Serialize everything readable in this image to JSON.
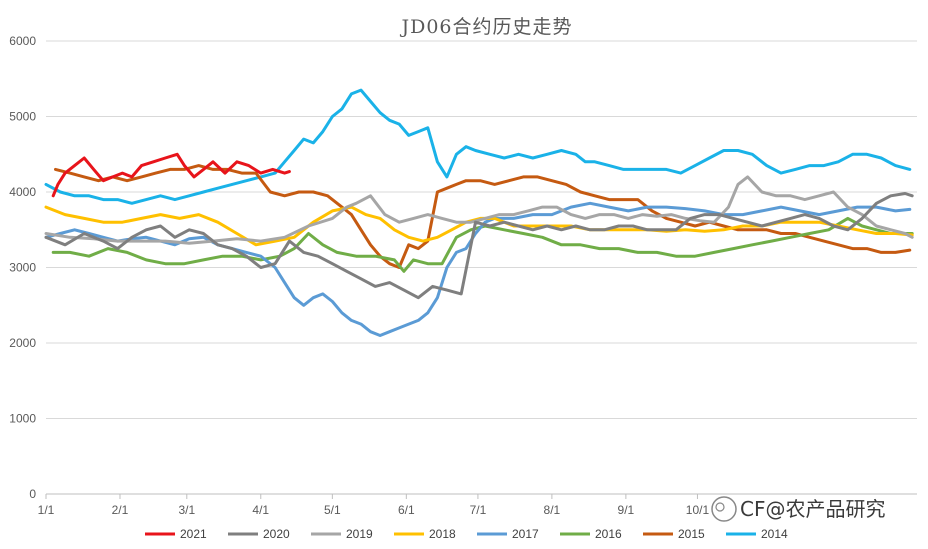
{
  "chart_data": {
    "type": "line",
    "title": "JD06合约历史走势",
    "xlabel": "",
    "ylabel": "",
    "ylim": [
      0,
      6000
    ],
    "yticks": [
      0,
      1000,
      2000,
      3000,
      4000,
      5000,
      6000
    ],
    "xlim": [
      0,
      365
    ],
    "xticks": [
      {
        "label": "1/1",
        "day": 0
      },
      {
        "label": "2/1",
        "day": 31
      },
      {
        "label": "3/1",
        "day": 59
      },
      {
        "label": "4/1",
        "day": 90
      },
      {
        "label": "5/1",
        "day": 120
      },
      {
        "label": "6/1",
        "day": 151
      },
      {
        "label": "7/1",
        "day": 181
      },
      {
        "label": "8/1",
        "day": 212
      },
      {
        "label": "9/1",
        "day": 243
      },
      {
        "label": "10/1",
        "day": 273
      }
    ],
    "grid": "horizontal",
    "legend_position": "bottom",
    "series": [
      {
        "name": "2021",
        "color": "#e8141b",
        "x": [
          3,
          5,
          8,
          12,
          16,
          20,
          24,
          28,
          32,
          36,
          40,
          45,
          50,
          55,
          58,
          62,
          66,
          70,
          75,
          80,
          85,
          90,
          95,
          100,
          102
        ],
        "y": [
          3950,
          4100,
          4250,
          4350,
          4450,
          4300,
          4150,
          4200,
          4250,
          4200,
          4350,
          4400,
          4450,
          4500,
          4350,
          4200,
          4300,
          4400,
          4250,
          4400,
          4350,
          4250,
          4300,
          4250,
          4270
        ]
      },
      {
        "name": "2020",
        "color": "#7f7f7f",
        "x": [
          0,
          8,
          16,
          24,
          30,
          36,
          42,
          48,
          54,
          60,
          66,
          72,
          78,
          84,
          90,
          96,
          102,
          108,
          114,
          120,
          126,
          132,
          138,
          144,
          150,
          156,
          162,
          168,
          174,
          180,
          186,
          192,
          198,
          204,
          210,
          216,
          222,
          228,
          234,
          240,
          246,
          252,
          258,
          264,
          270,
          276,
          282,
          288,
          294,
          300,
          306,
          312,
          318,
          324,
          330,
          336,
          342,
          348,
          354,
          360,
          363
        ],
        "y": [
          3400,
          3300,
          3450,
          3350,
          3250,
          3400,
          3500,
          3550,
          3400,
          3500,
          3450,
          3300,
          3250,
          3150,
          3000,
          3050,
          3350,
          3200,
          3150,
          3050,
          2950,
          2850,
          2750,
          2800,
          2700,
          2600,
          2750,
          2700,
          2650,
          3600,
          3550,
          3600,
          3550,
          3500,
          3550,
          3500,
          3550,
          3500,
          3500,
          3550,
          3550,
          3500,
          3500,
          3500,
          3650,
          3700,
          3700,
          3650,
          3600,
          3550,
          3600,
          3650,
          3700,
          3650,
          3550,
          3500,
          3650,
          3850,
          3950,
          3980,
          3950
        ]
      },
      {
        "name": "2019",
        "color": "#a6a6a6",
        "x": [
          0,
          10,
          20,
          30,
          40,
          50,
          60,
          70,
          80,
          90,
          100,
          110,
          120,
          126,
          130,
          136,
          142,
          148,
          154,
          160,
          166,
          172,
          178,
          184,
          190,
          196,
          202,
          208,
          214,
          220,
          226,
          232,
          238,
          244,
          250,
          256,
          262,
          268,
          274,
          280,
          286,
          290,
          294,
          300,
          306,
          312,
          318,
          324,
          330,
          336,
          342,
          348,
          354,
          360,
          363
        ],
        "y": [
          3450,
          3400,
          3380,
          3350,
          3350,
          3350,
          3320,
          3350,
          3380,
          3350,
          3400,
          3550,
          3650,
          3800,
          3850,
          3950,
          3700,
          3600,
          3650,
          3700,
          3650,
          3600,
          3600,
          3650,
          3700,
          3700,
          3750,
          3800,
          3800,
          3700,
          3650,
          3700,
          3700,
          3650,
          3700,
          3680,
          3700,
          3650,
          3620,
          3600,
          3800,
          4100,
          4200,
          4000,
          3950,
          3950,
          3900,
          3950,
          4000,
          3800,
          3700,
          3550,
          3500,
          3450,
          3400
        ]
      },
      {
        "name": "2018",
        "color": "#ffc000",
        "x": [
          0,
          8,
          16,
          24,
          32,
          40,
          48,
          56,
          64,
          72,
          80,
          88,
          96,
          104,
          112,
          120,
          128,
          134,
          140,
          146,
          152,
          158,
          164,
          170,
          176,
          182,
          188,
          196,
          204,
          212,
          220,
          228,
          236,
          244,
          252,
          260,
          268,
          276,
          284,
          292,
          300,
          308,
          316,
          324,
          332,
          340,
          348,
          356,
          363
        ],
        "y": [
          3800,
          3700,
          3650,
          3600,
          3600,
          3650,
          3700,
          3650,
          3700,
          3600,
          3450,
          3300,
          3350,
          3400,
          3600,
          3750,
          3800,
          3700,
          3650,
          3500,
          3400,
          3350,
          3400,
          3500,
          3600,
          3650,
          3650,
          3550,
          3550,
          3550,
          3550,
          3500,
          3500,
          3500,
          3500,
          3480,
          3500,
          3480,
          3500,
          3550,
          3550,
          3600,
          3600,
          3600,
          3550,
          3500,
          3450,
          3450,
          3430
        ]
      },
      {
        "name": "2017",
        "color": "#5b9bd5",
        "x": [
          0,
          6,
          12,
          18,
          24,
          30,
          36,
          42,
          48,
          54,
          60,
          66,
          72,
          78,
          84,
          90,
          96,
          100,
          104,
          108,
          112,
          116,
          120,
          124,
          128,
          132,
          136,
          140,
          144,
          148,
          152,
          156,
          160,
          164,
          168,
          172,
          176,
          180,
          184,
          188,
          196,
          204,
          212,
          220,
          228,
          236,
          244,
          252,
          260,
          268,
          276,
          284,
          292,
          300,
          308,
          316,
          324,
          332,
          340,
          348,
          356,
          362
        ],
        "y": [
          3400,
          3450,
          3500,
          3450,
          3400,
          3350,
          3380,
          3400,
          3350,
          3300,
          3380,
          3400,
          3300,
          3250,
          3200,
          3150,
          3000,
          2800,
          2600,
          2500,
          2600,
          2650,
          2550,
          2400,
          2300,
          2250,
          2150,
          2100,
          2150,
          2200,
          2250,
          2300,
          2400,
          2600,
          3000,
          3200,
          3250,
          3450,
          3600,
          3650,
          3650,
          3700,
          3700,
          3800,
          3850,
          3800,
          3750,
          3800,
          3800,
          3780,
          3750,
          3700,
          3700,
          3750,
          3800,
          3750,
          3700,
          3750,
          3800,
          3800,
          3750,
          3770
        ]
      },
      {
        "name": "2016",
        "color": "#70ad47",
        "x": [
          3,
          10,
          18,
          26,
          34,
          42,
          50,
          58,
          66,
          74,
          82,
          90,
          98,
          104,
          110,
          116,
          122,
          130,
          138,
          146,
          150,
          154,
          160,
          166,
          172,
          178,
          184,
          192,
          200,
          208,
          216,
          224,
          232,
          240,
          248,
          256,
          264,
          272,
          280,
          288,
          296,
          304,
          312,
          320,
          328,
          336,
          342,
          348,
          354,
          360,
          363
        ],
        "y": [
          3200,
          3200,
          3150,
          3250,
          3200,
          3100,
          3050,
          3050,
          3100,
          3150,
          3150,
          3100,
          3150,
          3250,
          3450,
          3300,
          3200,
          3150,
          3150,
          3100,
          2950,
          3100,
          3050,
          3050,
          3400,
          3500,
          3550,
          3500,
          3450,
          3400,
          3300,
          3300,
          3250,
          3250,
          3200,
          3200,
          3150,
          3150,
          3200,
          3250,
          3300,
          3350,
          3400,
          3450,
          3500,
          3650,
          3550,
          3500,
          3450,
          3450,
          3450
        ]
      },
      {
        "name": "2015",
        "color": "#c55a11",
        "x": [
          4,
          10,
          16,
          22,
          28,
          34,
          40,
          46,
          52,
          58,
          64,
          70,
          76,
          82,
          88,
          94,
          100,
          106,
          112,
          118,
          124,
          128,
          132,
          136,
          140,
          144,
          148,
          152,
          156,
          160,
          164,
          168,
          172,
          176,
          182,
          188,
          194,
          200,
          206,
          212,
          218,
          224,
          230,
          236,
          242,
          248,
          254,
          260,
          266,
          272,
          278,
          284,
          290,
          296,
          302,
          308,
          314,
          320,
          326,
          332,
          338,
          344,
          350,
          356,
          362
        ],
        "y": [
          4300,
          4250,
          4200,
          4150,
          4200,
          4150,
          4200,
          4250,
          4300,
          4300,
          4350,
          4300,
          4300,
          4250,
          4250,
          4000,
          3950,
          4000,
          4000,
          3950,
          3800,
          3700,
          3500,
          3300,
          3150,
          3050,
          3000,
          3300,
          3250,
          3350,
          4000,
          4050,
          4100,
          4150,
          4150,
          4100,
          4150,
          4200,
          4200,
          4150,
          4100,
          4000,
          3950,
          3900,
          3900,
          3900,
          3750,
          3650,
          3600,
          3550,
          3600,
          3550,
          3500,
          3500,
          3500,
          3450,
          3450,
          3400,
          3350,
          3300,
          3250,
          3250,
          3200,
          3200,
          3230
        ]
      },
      {
        "name": "2014",
        "color": "#1ab2e8",
        "x": [
          0,
          6,
          12,
          18,
          24,
          30,
          36,
          42,
          48,
          54,
          60,
          66,
          72,
          78,
          84,
          90,
          96,
          100,
          104,
          108,
          112,
          116,
          120,
          124,
          128,
          132,
          136,
          140,
          144,
          148,
          152,
          156,
          160,
          164,
          168,
          172,
          176,
          180,
          186,
          192,
          198,
          204,
          210,
          216,
          222,
          226,
          230,
          236,
          242,
          248,
          254,
          260,
          266,
          272,
          278,
          284,
          290,
          296,
          302,
          308,
          314,
          320,
          326,
          332,
          338,
          344,
          350,
          356,
          362
        ],
        "y": [
          4100,
          4000,
          3950,
          3950,
          3900,
          3900,
          3850,
          3900,
          3950,
          3900,
          3950,
          4000,
          4050,
          4100,
          4150,
          4200,
          4250,
          4400,
          4550,
          4700,
          4650,
          4800,
          5000,
          5100,
          5300,
          5350,
          5200,
          5050,
          4950,
          4900,
          4750,
          4800,
          4850,
          4400,
          4200,
          4500,
          4600,
          4550,
          4500,
          4450,
          4500,
          4450,
          4500,
          4550,
          4500,
          4400,
          4400,
          4350,
          4300,
          4300,
          4300,
          4300,
          4250,
          4350,
          4450,
          4550,
          4550,
          4500,
          4350,
          4250,
          4300,
          4350,
          4350,
          4400,
          4500,
          4500,
          4450,
          4350,
          4300
        ]
      }
    ],
    "watermark": "CF@农产品研究"
  }
}
